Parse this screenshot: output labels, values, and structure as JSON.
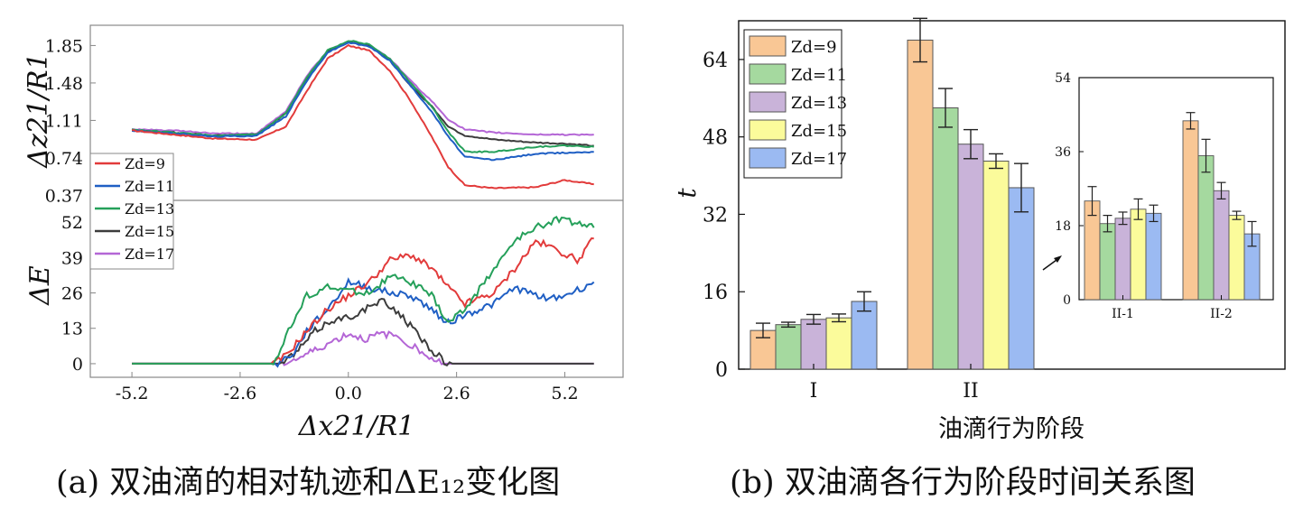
{
  "captions": {
    "a": "(a) 双油滴的相对轨迹和ΔE₁₂变化图",
    "b": "(b) 双油滴各行为阶段时间关系图"
  },
  "series_names": [
    "Zd=9",
    "Zd=11",
    "Zd=13",
    "Zd=15",
    "Zd=17"
  ],
  "colors": [
    "#e23b3b",
    "#1f5fc4",
    "#25a05a",
    "#3c3c3c",
    "#b466d6"
  ],
  "bar_colors": [
    "#f9c795",
    "#a5d99f",
    "#c9b3d9",
    "#fbfb9b",
    "#9bbaf2"
  ],
  "chart_data": [
    {
      "type": "line",
      "title": "",
      "xlabel": "Δx21/R1",
      "ylabel": "Δz21/R1",
      "xlim": [
        -6.2,
        6.6
      ],
      "ylim": [
        0.32,
        2.05
      ],
      "xticks": [
        "-5.2",
        "-2.6",
        "0.0",
        "2.6",
        "5.2"
      ],
      "yticks": [
        "1.85",
        "1.48",
        "1.11",
        "0.74",
        "0.37"
      ],
      "legend": "lower-left",
      "series": [
        {
          "name": "Zd=9",
          "x": [
            -5.2,
            -4.2,
            -3.2,
            -2.2,
            -1.5,
            -1.0,
            -0.5,
            0.0,
            0.5,
            1.0,
            1.5,
            2.0,
            2.4,
            2.8,
            3.5,
            4.5,
            5.2,
            5.9
          ],
          "y": [
            1.01,
            0.97,
            0.93,
            0.92,
            1.05,
            1.4,
            1.72,
            1.85,
            1.8,
            1.6,
            1.3,
            0.95,
            0.65,
            0.47,
            0.44,
            0.45,
            0.52,
            0.48
          ]
        },
        {
          "name": "Zd=11",
          "x": [
            -5.2,
            -4.2,
            -3.2,
            -2.2,
            -1.5,
            -1.0,
            -0.5,
            0.0,
            0.5,
            1.0,
            1.5,
            2.0,
            2.4,
            2.8,
            3.5,
            4.5,
            5.2,
            5.9
          ],
          "y": [
            1.01,
            0.98,
            0.95,
            0.96,
            1.15,
            1.5,
            1.78,
            1.88,
            1.84,
            1.7,
            1.45,
            1.2,
            0.95,
            0.75,
            0.72,
            0.78,
            0.79,
            0.8
          ]
        },
        {
          "name": "Zd=13",
          "x": [
            -5.2,
            -4.2,
            -3.2,
            -2.2,
            -1.5,
            -1.0,
            -0.5,
            0.0,
            0.5,
            1.0,
            1.5,
            2.0,
            2.4,
            2.8,
            3.5,
            4.5,
            5.2,
            5.9
          ],
          "y": [
            1.02,
            0.99,
            0.96,
            0.97,
            1.18,
            1.53,
            1.8,
            1.9,
            1.86,
            1.72,
            1.48,
            1.25,
            1.0,
            0.8,
            0.8,
            0.85,
            0.86,
            0.85
          ]
        },
        {
          "name": "Zd=15",
          "x": [
            -5.2,
            -4.2,
            -3.2,
            -2.2,
            -1.5,
            -1.0,
            -0.5,
            0.0,
            0.5,
            1.0,
            1.5,
            2.0,
            2.4,
            2.8,
            3.5,
            4.5,
            5.2,
            5.9
          ],
          "y": [
            1.01,
            0.99,
            0.96,
            0.97,
            1.18,
            1.52,
            1.79,
            1.89,
            1.85,
            1.7,
            1.45,
            1.25,
            1.05,
            0.96,
            0.92,
            0.89,
            0.88,
            0.86
          ]
        },
        {
          "name": "Zd=17",
          "x": [
            -5.2,
            -4.2,
            -3.2,
            -2.2,
            -1.5,
            -1.0,
            -0.5,
            0.0,
            0.5,
            1.0,
            1.5,
            2.0,
            2.4,
            2.8,
            3.5,
            4.5,
            5.2,
            5.9
          ],
          "y": [
            1.02,
            1.01,
            0.98,
            0.98,
            1.2,
            1.55,
            1.8,
            1.89,
            1.85,
            1.72,
            1.5,
            1.3,
            1.12,
            1.02,
            0.99,
            0.97,
            0.97,
            0.97
          ]
        }
      ]
    },
    {
      "type": "line",
      "title": "",
      "xlabel": "Δx21/R1",
      "ylabel": "ΔE",
      "xlim": [
        -6.2,
        6.6
      ],
      "ylim": [
        -5,
        60
      ],
      "xticks": [
        "-5.2",
        "-2.6",
        "0.0",
        "2.6",
        "5.2"
      ],
      "yticks": [
        "52",
        "39",
        "26",
        "13",
        "0"
      ],
      "series": [
        {
          "name": "Zd=9",
          "x": [
            -5.2,
            -1.8,
            -1.5,
            -1.0,
            -0.5,
            0.0,
            0.5,
            1.0,
            1.5,
            2.0,
            2.4,
            2.8,
            3.5,
            4.0,
            4.5,
            5.0,
            5.5,
            5.9
          ],
          "y": [
            0,
            0,
            3,
            12,
            20,
            25,
            30,
            38,
            40,
            35,
            28,
            22,
            26,
            35,
            45,
            42,
            38,
            46
          ]
        },
        {
          "name": "Zd=11",
          "x": [
            -5.2,
            -1.7,
            -1.3,
            -1.0,
            -0.5,
            0.0,
            0.5,
            1.0,
            1.5,
            2.0,
            2.4,
            2.8,
            3.5,
            4.0,
            4.5,
            5.0,
            5.5,
            5.9
          ],
          "y": [
            0,
            0,
            4,
            12,
            20,
            30,
            28,
            26,
            25,
            20,
            15,
            18,
            22,
            28,
            25,
            24,
            27,
            30
          ]
        },
        {
          "name": "Zd=13",
          "x": [
            -5.2,
            -1.8,
            -1.5,
            -1.0,
            -0.5,
            0.0,
            0.5,
            1.0,
            1.5,
            2.0,
            2.4,
            2.8,
            3.5,
            4.0,
            4.5,
            5.0,
            5.5,
            5.9
          ],
          "y": [
            0,
            0,
            10,
            25,
            28,
            27,
            26,
            32,
            30,
            25,
            15,
            20,
            35,
            45,
            50,
            53,
            52,
            50
          ]
        },
        {
          "name": "Zd=15",
          "x": [
            -5.2,
            -1.6,
            -1.2,
            -0.8,
            -0.4,
            0.0,
            0.4,
            0.8,
            1.2,
            1.6,
            2.0,
            2.3,
            2.5,
            5.9
          ],
          "y": [
            0,
            0,
            5,
            12,
            16,
            17,
            20,
            23,
            19,
            12,
            5,
            1,
            0,
            0
          ]
        },
        {
          "name": "Zd=17",
          "x": [
            -5.2,
            -1.6,
            -1.2,
            -0.8,
            -0.4,
            0.0,
            0.4,
            0.8,
            1.2,
            1.6,
            2.0,
            2.3,
            2.5,
            5.9
          ],
          "y": [
            0,
            0,
            2,
            5,
            8,
            11,
            9,
            11,
            10,
            6,
            2,
            0,
            0,
            0
          ]
        }
      ]
    },
    {
      "type": "bar",
      "title": "",
      "xlabel": "油滴行为阶段",
      "ylabel": "t",
      "categories": [
        "I",
        "II"
      ],
      "ylim": [
        0,
        72
      ],
      "yticks": [
        "0",
        "16",
        "32",
        "48",
        "64"
      ],
      "legend": "top-left",
      "series": [
        {
          "name": "Zd=9",
          "values": [
            8.0,
            68.0
          ],
          "errors": [
            1.5,
            4.5
          ]
        },
        {
          "name": "Zd=11",
          "values": [
            9.2,
            54.0
          ],
          "errors": [
            0.5,
            4.0
          ]
        },
        {
          "name": "Zd=13",
          "values": [
            10.3,
            46.5
          ],
          "errors": [
            1.0,
            3.0
          ]
        },
        {
          "name": "Zd=15",
          "values": [
            10.6,
            43.0
          ],
          "errors": [
            0.8,
            1.5
          ]
        },
        {
          "name": "Zd=17",
          "values": [
            14.0,
            37.5
          ],
          "errors": [
            2.0,
            5.0
          ]
        }
      ]
    },
    {
      "type": "bar",
      "title": "",
      "categories": [
        "II-1",
        "II-2"
      ],
      "ylim": [
        0,
        54
      ],
      "yticks": [
        "0",
        "18",
        "36",
        "54"
      ],
      "series": [
        {
          "name": "Zd=9",
          "values": [
            24.0,
            43.5
          ],
          "errors": [
            3.5,
            2.0
          ]
        },
        {
          "name": "Zd=11",
          "values": [
            18.5,
            35.0
          ],
          "errors": [
            2.0,
            4.0
          ]
        },
        {
          "name": "Zd=13",
          "values": [
            19.8,
            26.5
          ],
          "errors": [
            1.5,
            2.0
          ]
        },
        {
          "name": "Zd=15",
          "values": [
            22.0,
            20.5
          ],
          "errors": [
            2.5,
            1.0
          ]
        },
        {
          "name": "Zd=17",
          "values": [
            21.0,
            16.0
          ],
          "errors": [
            2.0,
            3.0
          ]
        }
      ]
    }
  ]
}
